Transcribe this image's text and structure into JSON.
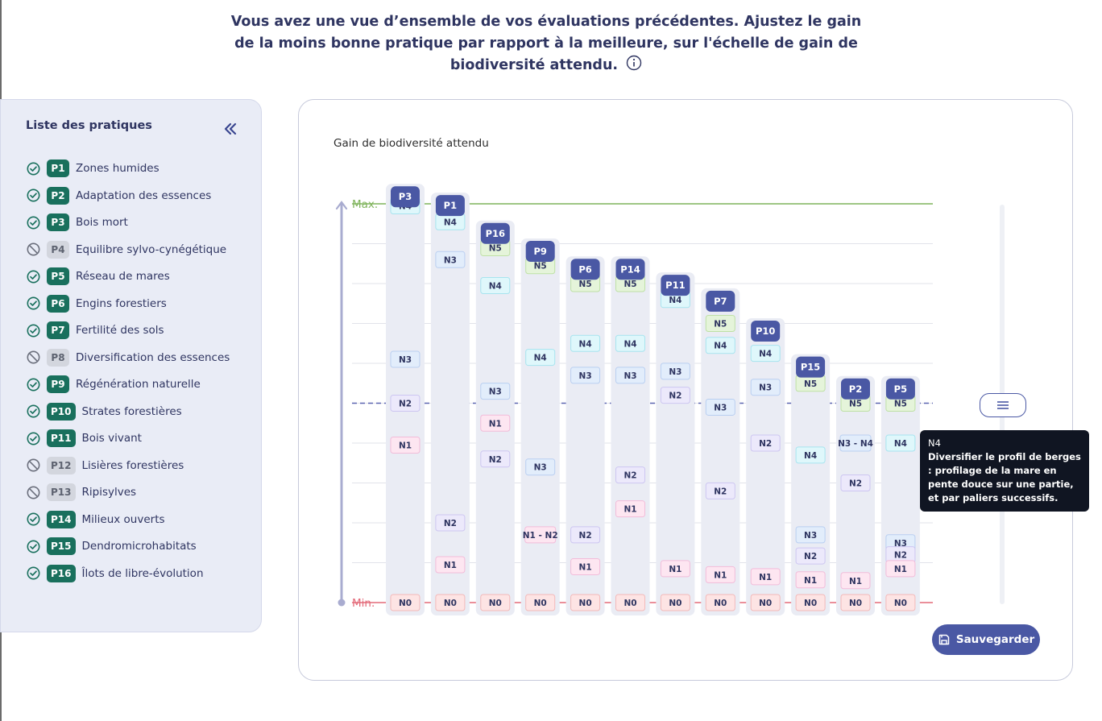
{
  "intro": {
    "text": "Vous avez une vue d’ensemble de vos évaluations précédentes. Ajustez le gain de la moins bonne pratique par rapport à la meilleure, sur l'échelle de gain de biodiversité attendu."
  },
  "sidebar": {
    "title": "Liste des pratiques",
    "items": [
      {
        "code": "P1",
        "label": "Zones humides",
        "status": "done"
      },
      {
        "code": "P2",
        "label": "Adaptation des essences",
        "status": "done"
      },
      {
        "code": "P3",
        "label": "Bois mort",
        "status": "done"
      },
      {
        "code": "P4",
        "label": "Equilibre sylvo-cynégétique",
        "status": "excluded"
      },
      {
        "code": "P5",
        "label": "Réseau de mares",
        "status": "done"
      },
      {
        "code": "P6",
        "label": "Engins forestiers",
        "status": "done"
      },
      {
        "code": "P7",
        "label": "Fertilité des sols",
        "status": "done"
      },
      {
        "code": "P8",
        "label": "Diversification des essences",
        "status": "excluded"
      },
      {
        "code": "P9",
        "label": "Régénération naturelle",
        "status": "done"
      },
      {
        "code": "P10",
        "label": "Strates forestières",
        "status": "done"
      },
      {
        "code": "P11",
        "label": "Bois vivant",
        "status": "done"
      },
      {
        "code": "P12",
        "label": "Lisières forestières",
        "status": "excluded"
      },
      {
        "code": "P13",
        "label": "Ripisylves",
        "status": "excluded"
      },
      {
        "code": "P14",
        "label": "Milieux ouverts",
        "status": "done"
      },
      {
        "code": "P15",
        "label": "Dendromicrohabitats",
        "status": "done"
      },
      {
        "code": "P16",
        "label": "Îlots de libre-évolution",
        "status": "done"
      }
    ]
  },
  "chart": {
    "title": "Gain de biodiversité attendu",
    "max_label": "Max.",
    "min_label": "Min."
  },
  "chart_data": {
    "type": "scatter",
    "ylim": [
      0,
      10
    ],
    "grid": true,
    "reference_level": 5,
    "columns": [
      {
        "code": "P3",
        "top": 10.42,
        "levels": [
          {
            "label": "N4",
            "y": 9.95
          },
          {
            "label": "N3",
            "y": 6.1
          },
          {
            "label": "N2",
            "y": 5.0
          },
          {
            "label": "N1",
            "y": 3.95
          },
          {
            "label": "N0",
            "y": 0
          }
        ]
      },
      {
        "code": "P1",
        "top": 10.2,
        "levels": [
          {
            "label": "N4",
            "y": 9.55
          },
          {
            "label": "N3",
            "y": 8.6
          },
          {
            "label": "N2",
            "y": 2.0
          },
          {
            "label": "N1",
            "y": 0.95
          },
          {
            "label": "N0",
            "y": 0
          }
        ]
      },
      {
        "code": "P16",
        "top": 9.5,
        "levels": [
          {
            "label": "N5",
            "y": 8.9
          },
          {
            "label": "N4",
            "y": 7.95
          },
          {
            "label": "N3",
            "y": 5.3
          },
          {
            "label": "N1",
            "y": 4.5
          },
          {
            "label": "N2",
            "y": 3.6
          },
          {
            "label": "N0",
            "y": 0
          }
        ]
      },
      {
        "code": "P9",
        "top": 9.05,
        "levels": [
          {
            "label": "N5",
            "y": 8.45
          },
          {
            "label": "N4",
            "y": 6.15
          },
          {
            "label": "N3",
            "y": 3.4
          },
          {
            "label": "N1 - N2",
            "y": 1.7
          },
          {
            "label": "N0",
            "y": 0
          }
        ]
      },
      {
        "code": "P6",
        "top": 8.6,
        "levels": [
          {
            "label": "N5",
            "y": 8.0
          },
          {
            "label": "N4",
            "y": 6.5
          },
          {
            "label": "N3",
            "y": 5.7
          },
          {
            "label": "N2",
            "y": 1.7
          },
          {
            "label": "N1",
            "y": 0.9
          },
          {
            "label": "N0",
            "y": 0
          }
        ]
      },
      {
        "code": "P14",
        "top": 8.6,
        "levels": [
          {
            "label": "N5",
            "y": 8.0
          },
          {
            "label": "N4",
            "y": 6.5
          },
          {
            "label": "N3",
            "y": 5.7
          },
          {
            "label": "N2",
            "y": 3.2
          },
          {
            "label": "N1",
            "y": 2.35
          },
          {
            "label": "N0",
            "y": 0
          }
        ]
      },
      {
        "code": "P11",
        "top": 8.2,
        "levels": [
          {
            "label": "N4",
            "y": 7.6
          },
          {
            "label": "N3",
            "y": 5.8
          },
          {
            "label": "N2",
            "y": 5.2
          },
          {
            "label": "N1",
            "y": 0.85
          },
          {
            "label": "N0",
            "y": 0
          }
        ]
      },
      {
        "code": "P7",
        "top": 7.8,
        "levels": [
          {
            "label": "N5",
            "y": 7.0
          },
          {
            "label": "N4",
            "y": 6.45
          },
          {
            "label": "N3",
            "y": 4.9
          },
          {
            "label": "N2",
            "y": 2.8
          },
          {
            "label": "N1",
            "y": 0.7
          },
          {
            "label": "N0",
            "y": 0
          }
        ]
      },
      {
        "code": "P10",
        "top": 7.05,
        "levels": [
          {
            "label": "N4",
            "y": 6.25
          },
          {
            "label": "N3",
            "y": 5.4
          },
          {
            "label": "N2",
            "y": 4.0
          },
          {
            "label": "N1",
            "y": 0.65
          },
          {
            "label": "N0",
            "y": 0
          }
        ]
      },
      {
        "code": "P15",
        "top": 6.15,
        "levels": [
          {
            "label": "N5",
            "y": 5.5
          },
          {
            "label": "N4",
            "y": 3.7
          },
          {
            "label": "N3",
            "y": 1.7
          },
          {
            "label": "N2",
            "y": 1.17
          },
          {
            "label": "N1",
            "y": 0.57
          },
          {
            "label": "N0",
            "y": 0
          }
        ]
      },
      {
        "code": "P2",
        "top": 5.6,
        "levels": [
          {
            "label": "N5",
            "y": 5.0
          },
          {
            "label": "N3 - N4",
            "y": 4.0
          },
          {
            "label": "N2",
            "y": 3.0
          },
          {
            "label": "N1",
            "y": 0.55
          },
          {
            "label": "N0",
            "y": 0
          }
        ]
      },
      {
        "code": "P5",
        "top": 5.6,
        "levels": [
          {
            "label": "N5",
            "y": 5.0
          },
          {
            "label": "N4",
            "y": 4.0
          },
          {
            "label": "N3",
            "y": 1.5
          },
          {
            "label": "N2",
            "y": 1.2
          },
          {
            "label": "N1",
            "y": 0.85
          },
          {
            "label": "N0",
            "y": 0
          }
        ]
      }
    ]
  },
  "level_colors": {
    "N0": {
      "bg": "#fde4e4",
      "border": "#f3b9b9"
    },
    "N1": {
      "bg": "#fde6f1",
      "border": "#f2bcd9"
    },
    "N2": {
      "bg": "#ece9fb",
      "border": "#cdc6f1"
    },
    "N3": {
      "bg": "#e2edfb",
      "border": "#b9cff1"
    },
    "N4": {
      "bg": "#dff7fb",
      "border": "#a7e4ef"
    },
    "N5": {
      "bg": "#e5f4da",
      "border": "#bfe1a6"
    }
  },
  "colors": {
    "accent": "#4a58a4",
    "brand_green": "#19705d",
    "max_line": "#7fb35b",
    "min_line": "#e36a79"
  },
  "tooltip": {
    "title": "N4",
    "text": "Diversifier le profil de berges : profilage de la mare en pente douce sur une partie, et par paliers successifs."
  },
  "actions": {
    "save_label": "Sauvegarder"
  }
}
